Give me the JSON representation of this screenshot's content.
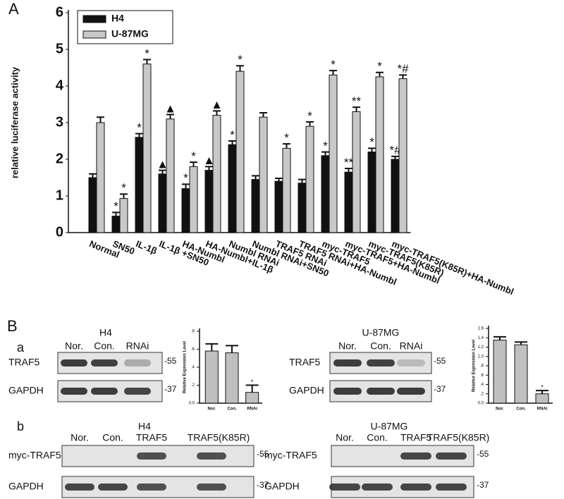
{
  "labels": {
    "panel_a": "A",
    "panel_b": "B",
    "sub_a": "a",
    "sub_b": "b"
  },
  "chart_data": [
    {
      "type": "bar",
      "ylabel": "relative luciferase activity",
      "categories": [
        "Normal",
        "SN50",
        "IL-1β",
        "IL-1β +SN50",
        "HA-Numbl",
        "HA-Numbl+IL-1β",
        "Numbl RNAi",
        "Numbl RNAi+SN50",
        "TRAF5 RNAi",
        "TRAF5 RNAi+HA-Numbl",
        "myc-TRAF5",
        "myc-TRAF5+HA-Numbl",
        "myc-TRAF5(K85R)",
        "myc-TRAF5(K85R)+HA-Numbl"
      ],
      "series": [
        {
          "name": "H4",
          "color": "#111111",
          "values": [
            1.5,
            0.45,
            2.6,
            1.6,
            1.2,
            1.7,
            2.4,
            1.45,
            1.4,
            1.35,
            2.1,
            1.65,
            2.2,
            2.0
          ],
          "errors": [
            0.1,
            0.1,
            0.1,
            0.1,
            0.12,
            0.1,
            0.1,
            0.1,
            0.08,
            0.1,
            0.1,
            0.1,
            0.1,
            0.08
          ],
          "markers": [
            null,
            "*",
            "*",
            "▲",
            "*",
            "▲",
            "*",
            null,
            null,
            null,
            "*",
            "**",
            "*",
            "*#"
          ]
        },
        {
          "name": "U-87MG",
          "color": "#c8c8c8",
          "values": [
            3.0,
            0.93,
            4.6,
            3.1,
            1.8,
            3.2,
            4.4,
            3.15,
            2.3,
            2.9,
            4.3,
            3.3,
            4.25,
            4.2
          ],
          "errors": [
            0.15,
            0.12,
            0.12,
            0.12,
            0.12,
            0.12,
            0.15,
            0.12,
            0.12,
            0.12,
            0.12,
            0.12,
            0.12,
            0.1
          ],
          "markers": [
            null,
            "*",
            "*",
            "▲",
            "*",
            "▲",
            "*",
            null,
            "*",
            "*",
            "*",
            "**",
            "*",
            "*#"
          ]
        }
      ],
      "ylim": [
        0,
        6
      ],
      "yticks": [
        0,
        1,
        2,
        3,
        4,
        5,
        6
      ],
      "legend": "upper left"
    },
    {
      "type": "bar",
      "ylabel": "Relative Expression Level",
      "categories": [
        "Nor.",
        "Con.",
        "RNAi"
      ],
      "values": [
        0.58,
        0.56,
        0.12
      ],
      "errors": [
        0.08,
        0.08,
        0.08
      ],
      "markers": [
        null,
        null,
        "*"
      ],
      "color": "#c0c0c0",
      "ylim": [
        0,
        0.8
      ],
      "yticks": [
        {
          "value": 0,
          "label": "0.0"
        },
        {
          "value": 0.2,
          "label": ".2"
        },
        {
          "value": 0.4,
          "label": ".4"
        },
        {
          "value": 0.6,
          "label": ".6"
        },
        {
          "value": 0.8,
          "label": ".8"
        }
      ]
    },
    {
      "type": "bar",
      "ylabel": "Relative Expression Level",
      "categories": [
        "Nor.",
        "Con.",
        "RNAi"
      ],
      "values": [
        1.35,
        1.25,
        0.2
      ],
      "errors": [
        0.07,
        0.06,
        0.07
      ],
      "markers": [
        null,
        null,
        "*"
      ],
      "color": "#c0c0c0",
      "ylim": [
        0,
        1.6
      ],
      "yticks": [
        {
          "value": 0,
          "label": "0.0"
        },
        {
          "value": 0.2,
          "label": ".2"
        },
        {
          "value": 0.4,
          "label": ".4"
        },
        {
          "value": 0.6,
          "label": ".6"
        },
        {
          "value": 0.8,
          "label": ".8"
        },
        {
          "value": 1.0,
          "label": "1.0"
        },
        {
          "value": 1.2,
          "label": "1.2"
        },
        {
          "value": 1.4,
          "label": "1.4"
        },
        {
          "value": 1.6,
          "label": "1.6"
        }
      ]
    }
  ],
  "blots": [
    {
      "cell": "H4",
      "lanes": [
        "Nor.",
        "Con.",
        "RNAi"
      ],
      "rows": [
        {
          "label": "TRAF5",
          "size": "-55"
        },
        {
          "label": "GAPDH",
          "size": "-37"
        }
      ]
    },
    {
      "cell": "U-87MG",
      "lanes": [
        "Nor.",
        "Con.",
        "RNAi"
      ],
      "rows": [
        {
          "label": "TRAF5",
          "size": "-55"
        },
        {
          "label": "GAPDH",
          "size": "-37"
        }
      ]
    },
    {
      "cell": "H4",
      "lanes": [
        "Nor.",
        "Con.",
        "TRAF5",
        "TRAF5(K85R)"
      ],
      "rows": [
        {
          "label": "myc-TRAF5",
          "size": "-55"
        },
        {
          "label": "GAPDH",
          "size": "-37"
        }
      ]
    },
    {
      "cell": "U-87MG",
      "lanes": [
        "Nor.",
        "Con.",
        "TRAF5",
        "TRAF5(K85R)"
      ],
      "rows": [
        {
          "label": "myc-TRAF5",
          "size": "-55"
        },
        {
          "label": "GAPDH",
          "size": "-37"
        }
      ]
    }
  ]
}
